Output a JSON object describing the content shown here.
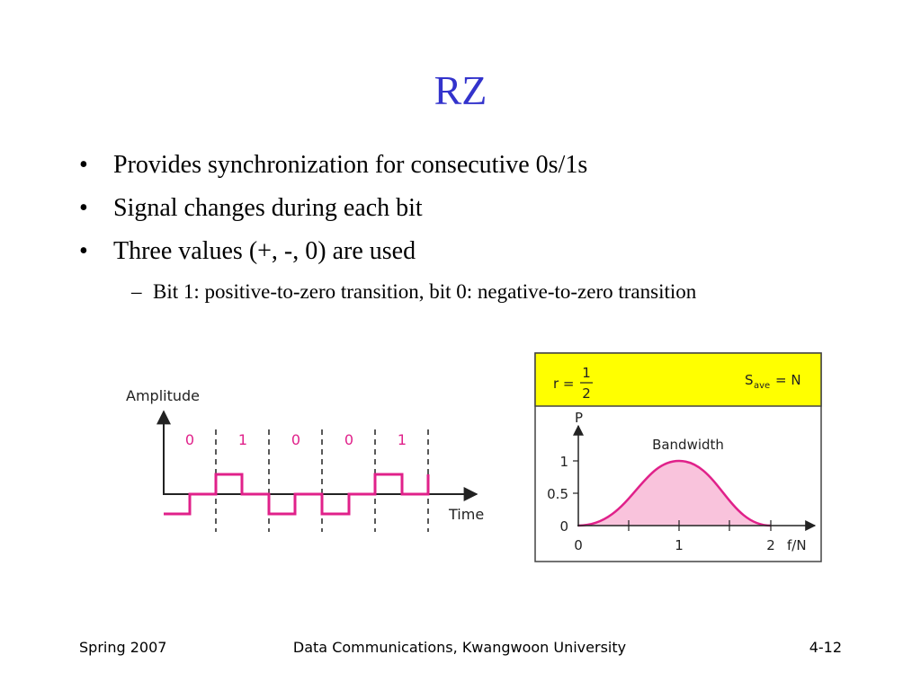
{
  "title": "RZ",
  "bullets": [
    {
      "text": "Provides synchronization for consecutive 0s/1s"
    },
    {
      "text": "Signal changes during each bit"
    },
    {
      "text": "Three values (+, -, 0) are used"
    }
  ],
  "sub_bullets": [
    {
      "text": "Bit 1: positive-to-zero transition, bit 0: negative-to-zero transition"
    }
  ],
  "figure_left": {
    "y_label": "Amplitude",
    "x_label": "Time",
    "bits": [
      "0",
      "1",
      "0",
      "0",
      "1"
    ]
  },
  "figure_right": {
    "r_label": "r =",
    "r_num": "1",
    "r_den": "2",
    "s_main": "S",
    "s_sub": "ave",
    "s_rest": "= N",
    "y_label": "P",
    "x_label": "f/N",
    "curve_label": "Bandwidth",
    "y_ticks": [
      "1",
      "0.5",
      "0"
    ],
    "x_ticks": [
      "0",
      "1",
      "2"
    ]
  },
  "footer": {
    "left": "Spring 2007",
    "center": "Data Communications, Kwangwoon University",
    "right": "4-12"
  }
}
